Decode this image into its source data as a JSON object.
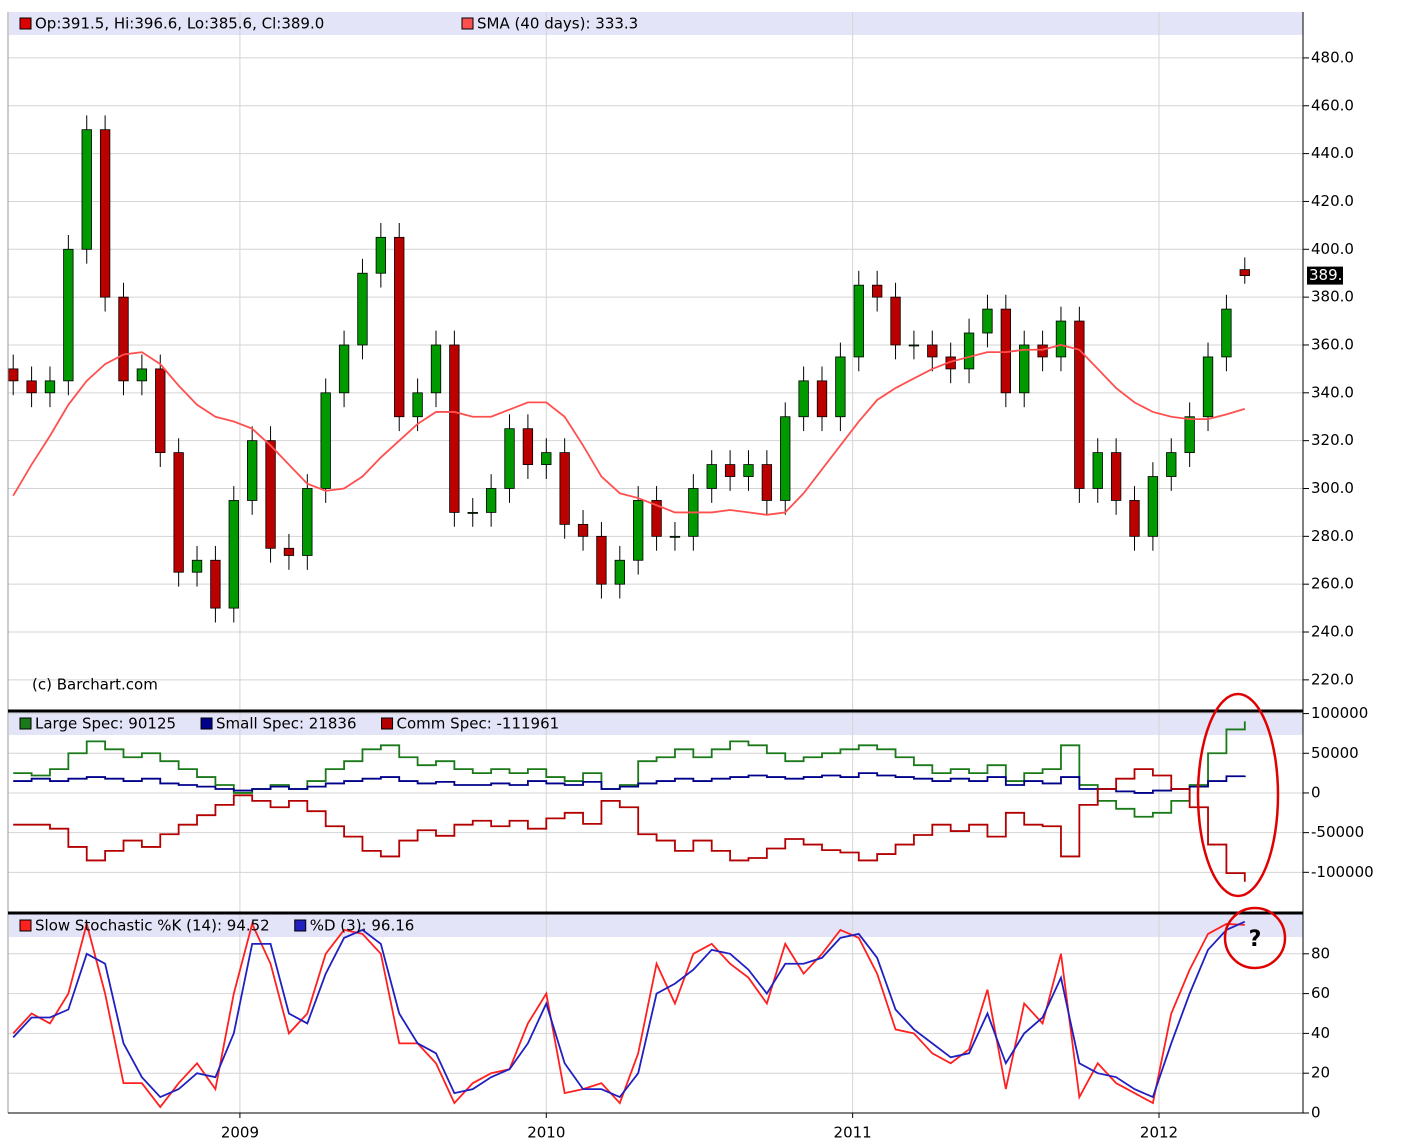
{
  "chart_data": [
    {
      "type": "candlestick",
      "legend": "Op:391.5, Hi:396.6, Lo:385.6, Cl:389.0",
      "legend_color": "#dd0000",
      "color_up": "#009900",
      "color_down": "#bb0000",
      "watermark": "(c) Barchart.com",
      "last_price_label": "389.0",
      "grid": true,
      "x": [
        2008.26,
        2008.32,
        2008.38,
        2008.44,
        2008.5,
        2008.56,
        2008.62,
        2008.68,
        2008.74,
        2008.8,
        2008.86,
        2008.92,
        2008.98,
        2009.04,
        2009.1,
        2009.16,
        2009.22,
        2009.28,
        2009.34,
        2009.4,
        2009.46,
        2009.52,
        2009.58,
        2009.64,
        2009.7,
        2009.76,
        2009.82,
        2009.88,
        2009.94,
        2010,
        2010.06,
        2010.12,
        2010.18,
        2010.24,
        2010.3,
        2010.36,
        2010.42,
        2010.48,
        2010.54,
        2010.6,
        2010.66,
        2010.72,
        2010.78,
        2010.84,
        2010.9,
        2010.96,
        2011.02,
        2011.08,
        2011.14,
        2011.2,
        2011.26,
        2011.32,
        2011.38,
        2011.44,
        2011.5,
        2011.56,
        2011.62,
        2011.68,
        2011.74,
        2011.8,
        2011.86,
        2011.92,
        2011.98,
        2012.04,
        2012.1,
        2012.16,
        2012.22,
        2012.28
      ],
      "open": [
        350,
        345,
        340,
        345,
        400,
        450,
        380,
        345,
        350,
        315,
        265,
        270,
        250,
        295,
        320,
        275,
        272,
        300,
        340,
        360,
        390,
        405,
        330,
        340,
        360,
        290,
        290,
        300,
        325,
        310,
        315,
        285,
        280,
        260,
        270,
        295,
        280,
        280,
        300,
        310,
        305,
        310,
        295,
        330,
        345,
        330,
        355,
        385,
        380,
        360,
        360,
        355,
        350,
        365,
        375,
        340,
        360,
        355,
        370,
        300,
        315,
        295,
        280,
        305,
        315,
        330,
        355,
        391.5
      ],
      "high": [
        356,
        351,
        351,
        406,
        456,
        456,
        386,
        356,
        356,
        321,
        276,
        276,
        301,
        326,
        326,
        281,
        306,
        346,
        366,
        396,
        411,
        411,
        346,
        366,
        366,
        296,
        306,
        331,
        331,
        321,
        321,
        291,
        286,
        276,
        301,
        301,
        286,
        306,
        316,
        316,
        316,
        316,
        336,
        351,
        351,
        361,
        391,
        391,
        386,
        366,
        366,
        361,
        371,
        381,
        381,
        366,
        366,
        376,
        376,
        321,
        321,
        301,
        311,
        321,
        336,
        361,
        381,
        396.6
      ],
      "low": [
        339,
        334,
        334,
        339,
        394,
        374,
        339,
        339,
        309,
        259,
        259,
        244,
        244,
        289,
        269,
        266,
        266,
        294,
        334,
        354,
        384,
        324,
        324,
        334,
        284,
        284,
        284,
        294,
        304,
        304,
        279,
        274,
        254,
        254,
        264,
        274,
        274,
        274,
        294,
        299,
        299,
        289,
        289,
        324,
        324,
        324,
        349,
        374,
        354,
        354,
        349,
        344,
        344,
        359,
        334,
        334,
        349,
        349,
        294,
        294,
        289,
        274,
        274,
        299,
        309,
        324,
        349,
        385.6
      ],
      "close": [
        345,
        340,
        345,
        400,
        450,
        380,
        345,
        350,
        315,
        265,
        270,
        250,
        295,
        320,
        275,
        272,
        300,
        340,
        360,
        390,
        405,
        330,
        340,
        360,
        290,
        290,
        300,
        325,
        310,
        315,
        285,
        280,
        260,
        270,
        295,
        280,
        280,
        300,
        310,
        305,
        310,
        295,
        330,
        345,
        330,
        355,
        385,
        380,
        360,
        360,
        355,
        350,
        365,
        375,
        340,
        360,
        355,
        370,
        300,
        315,
        295,
        280,
        305,
        315,
        330,
        355,
        375,
        389
      ],
      "series": [
        {
          "name": "SMA (40 days): 333.3",
          "color": "#ff5050",
          "values": [
            297,
            310,
            322,
            335,
            345,
            352,
            356,
            357,
            352,
            343,
            335,
            330,
            328,
            325,
            318,
            310,
            302,
            299,
            300,
            305,
            313,
            320,
            327,
            332,
            332,
            330,
            330,
            333,
            336,
            336,
            330,
            318,
            305,
            298,
            296,
            293,
            290,
            290,
            290,
            291,
            290,
            289,
            290,
            298,
            308,
            318,
            328,
            337,
            342,
            346,
            350,
            353,
            355,
            357,
            357,
            358,
            358,
            360,
            358,
            350,
            342,
            336,
            332,
            330,
            329,
            329,
            331,
            333.3
          ]
        }
      ],
      "xlim": [
        2008.243,
        2012.47
      ],
      "xticks": [
        2009,
        2010,
        2011,
        2012
      ],
      "ylim": [
        207.4,
        499.2
      ],
      "yticks": [
        {
          "value": 220,
          "label": "220.0"
        },
        {
          "value": 240,
          "label": "240.0"
        },
        {
          "value": 260,
          "label": "260.0"
        },
        {
          "value": 280,
          "label": "280.0"
        },
        {
          "value": 300,
          "label": "300.0"
        },
        {
          "value": 320,
          "label": "320.0"
        },
        {
          "value": 340,
          "label": "340.0"
        },
        {
          "value": 360,
          "label": "360.0"
        },
        {
          "value": 380,
          "label": "380.0"
        },
        {
          "value": 400,
          "label": "400.0"
        },
        {
          "value": 420,
          "label": "420.0"
        },
        {
          "value": 440,
          "label": "440.0"
        },
        {
          "value": 460,
          "label": "460.0"
        },
        {
          "value": 480,
          "label": "480.0"
        }
      ]
    },
    {
      "type": "line",
      "step": true,
      "grid": true,
      "x": [
        2008.26,
        2008.32,
        2008.38,
        2008.44,
        2008.5,
        2008.56,
        2008.62,
        2008.68,
        2008.74,
        2008.8,
        2008.86,
        2008.92,
        2008.98,
        2009.04,
        2009.1,
        2009.16,
        2009.22,
        2009.28,
        2009.34,
        2009.4,
        2009.46,
        2009.52,
        2009.58,
        2009.64,
        2009.7,
        2009.76,
        2009.82,
        2009.88,
        2009.94,
        2010,
        2010.06,
        2010.12,
        2010.18,
        2010.24,
        2010.3,
        2010.36,
        2010.42,
        2010.48,
        2010.54,
        2010.6,
        2010.66,
        2010.72,
        2010.78,
        2010.84,
        2010.9,
        2010.96,
        2011.02,
        2011.08,
        2011.14,
        2011.2,
        2011.26,
        2011.32,
        2011.38,
        2011.44,
        2011.5,
        2011.56,
        2011.62,
        2011.68,
        2011.74,
        2011.8,
        2011.86,
        2011.92,
        2011.98,
        2012.04,
        2012.1,
        2012.16,
        2012.22,
        2012.28
      ],
      "series": [
        {
          "name": "Large Spec: 90125",
          "color": "#1a7a1a",
          "values": [
            25000,
            22000,
            30000,
            50000,
            65000,
            55000,
            45000,
            50000,
            40000,
            30000,
            20000,
            10000,
            0,
            5000,
            10000,
            5000,
            15000,
            30000,
            40000,
            55000,
            60000,
            45000,
            35000,
            40000,
            30000,
            25000,
            30000,
            25000,
            30000,
            20000,
            15000,
            25000,
            5000,
            10000,
            40000,
            45000,
            55000,
            45000,
            55000,
            65000,
            60000,
            50000,
            40000,
            45000,
            50000,
            55000,
            60000,
            55000,
            45000,
            35000,
            25000,
            30000,
            25000,
            35000,
            15000,
            25000,
            30000,
            60000,
            10000,
            -10000,
            -20000,
            -30000,
            -25000,
            -10000,
            10000,
            50000,
            80000,
            90125
          ]
        },
        {
          "name": "Small Spec: 21836",
          "color": "#00008b",
          "values": [
            15000,
            18000,
            15000,
            18000,
            20000,
            18000,
            15000,
            18000,
            12000,
            10000,
            8000,
            5000,
            3000,
            5000,
            8000,
            5000,
            8000,
            12000,
            15000,
            18000,
            20000,
            15000,
            12000,
            14000,
            10000,
            10000,
            12000,
            10000,
            15000,
            12000,
            10000,
            14000,
            5000,
            8000,
            12000,
            15000,
            18000,
            15000,
            18000,
            20000,
            22000,
            20000,
            18000,
            20000,
            22000,
            20000,
            25000,
            22000,
            20000,
            18000,
            15000,
            18000,
            15000,
            20000,
            10000,
            15000,
            12000,
            20000,
            5000,
            5000,
            2000,
            0,
            3000,
            5000,
            8000,
            15000,
            21000,
            21836
          ]
        },
        {
          "name": "Comm Spec: -111961",
          "color": "#b40000",
          "values": [
            -40000,
            -40000,
            -45000,
            -68000,
            -85000,
            -73000,
            -60000,
            -68000,
            -52000,
            -40000,
            -28000,
            -15000,
            -3000,
            -10000,
            -18000,
            -10000,
            -23000,
            -42000,
            -55000,
            -73000,
            -80000,
            -60000,
            -47000,
            -54000,
            -40000,
            -35000,
            -42000,
            -35000,
            -45000,
            -32000,
            -25000,
            -39000,
            -10000,
            -18000,
            -52000,
            -60000,
            -73000,
            -60000,
            -73000,
            -85000,
            -82000,
            -70000,
            -58000,
            -65000,
            -72000,
            -75000,
            -85000,
            -77000,
            -65000,
            -53000,
            -40000,
            -48000,
            -40000,
            -55000,
            -25000,
            -40000,
            -42000,
            -80000,
            -15000,
            5000,
            18000,
            30000,
            22000,
            5000,
            -18000,
            -65000,
            -101000,
            -111961
          ]
        }
      ],
      "xlim": [
        2008.243,
        2012.47
      ],
      "xticks": [
        2009,
        2010,
        2011,
        2012
      ],
      "ylim": [
        -150000,
        102000
      ],
      "yticks": [
        -100000,
        -50000,
        0,
        50000,
        100000
      ]
    },
    {
      "type": "line",
      "grid": true,
      "annotation": "?",
      "x": [
        2008.26,
        2008.32,
        2008.38,
        2008.44,
        2008.5,
        2008.56,
        2008.62,
        2008.68,
        2008.74,
        2008.8,
        2008.86,
        2008.92,
        2008.98,
        2009.04,
        2009.1,
        2009.16,
        2009.22,
        2009.28,
        2009.34,
        2009.4,
        2009.46,
        2009.52,
        2009.58,
        2009.64,
        2009.7,
        2009.76,
        2009.82,
        2009.88,
        2009.94,
        2010,
        2010.06,
        2010.12,
        2010.18,
        2010.24,
        2010.3,
        2010.36,
        2010.42,
        2010.48,
        2010.54,
        2010.6,
        2010.66,
        2010.72,
        2010.78,
        2010.84,
        2010.9,
        2010.96,
        2011.02,
        2011.08,
        2011.14,
        2011.2,
        2011.26,
        2011.32,
        2011.38,
        2011.44,
        2011.5,
        2011.56,
        2011.62,
        2011.68,
        2011.74,
        2011.8,
        2011.86,
        2011.92,
        2011.98,
        2012.04,
        2012.1,
        2012.16,
        2012.22,
        2012.28
      ],
      "series": [
        {
          "name": "Slow Stochastic %K (14): 94.52",
          "color": "#ff2020",
          "values": [
            40,
            50,
            45,
            60,
            95,
            60,
            15,
            15,
            3,
            15,
            25,
            12,
            60,
            95,
            75,
            40,
            50,
            80,
            92,
            90,
            80,
            35,
            35,
            25,
            5,
            15,
            20,
            22,
            45,
            60,
            10,
            12,
            15,
            5,
            30,
            75,
            55,
            80,
            85,
            75,
            68,
            55,
            85,
            70,
            80,
            92,
            88,
            70,
            42,
            40,
            30,
            25,
            32,
            62,
            12,
            55,
            45,
            80,
            8,
            25,
            15,
            10,
            5,
            50,
            72,
            90,
            95,
            94.52
          ]
        },
        {
          "name": "%D (3): 96.16",
          "color": "#2020c0",
          "values": [
            38,
            48,
            48,
            52,
            80,
            75,
            35,
            18,
            8,
            12,
            20,
            18,
            40,
            85,
            85,
            50,
            45,
            70,
            88,
            92,
            85,
            50,
            35,
            30,
            10,
            12,
            18,
            22,
            35,
            55,
            25,
            12,
            12,
            8,
            20,
            60,
            65,
            72,
            82,
            80,
            72,
            60,
            75,
            75,
            78,
            88,
            90,
            78,
            52,
            42,
            35,
            28,
            30,
            50,
            25,
            40,
            48,
            68,
            25,
            20,
            18,
            12,
            8,
            35,
            60,
            82,
            92,
            96.16
          ]
        }
      ],
      "xlim": [
        2008.243,
        2012.47
      ],
      "xticks": [
        2009,
        2010,
        2011,
        2012
      ],
      "ylim": [
        0,
        100
      ],
      "yticks": [
        0,
        20,
        40,
        60,
        80
      ]
    }
  ]
}
